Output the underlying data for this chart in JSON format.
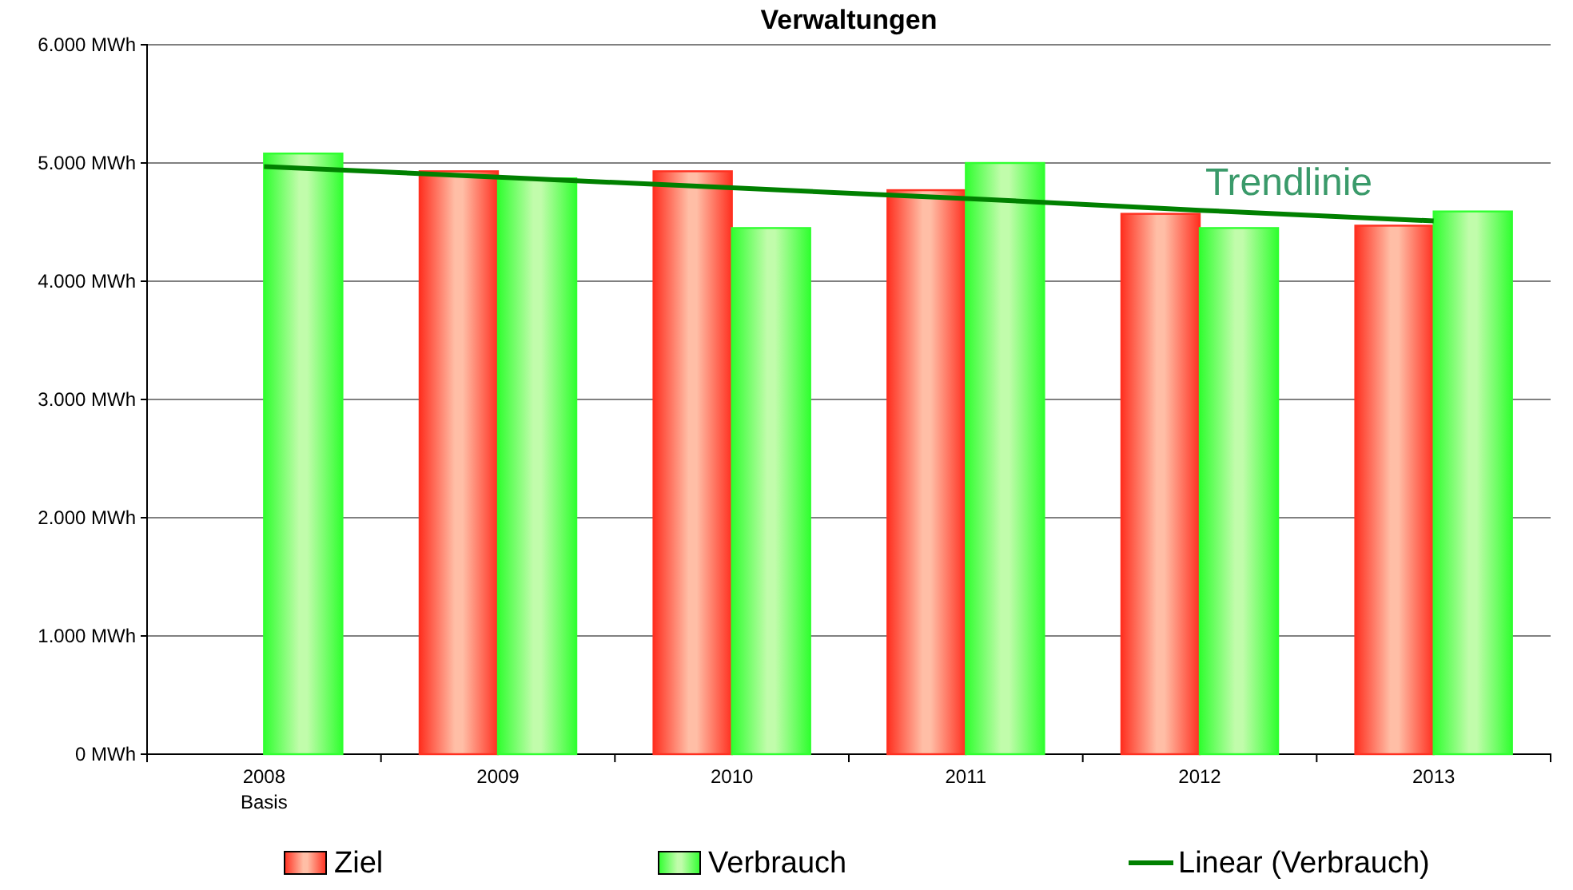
{
  "chart_data": {
    "type": "bar",
    "title": "Verwaltungen",
    "categories": [
      "2008\nBasis",
      "2009",
      "2010",
      "2011",
      "2012",
      "2013"
    ],
    "series": [
      {
        "name": "Ziel",
        "color": "#ff3020",
        "values": [
          null,
          4930,
          4930,
          4770,
          4570,
          4470
        ]
      },
      {
        "name": "Verbrauch",
        "color": "#30ff30",
        "values": [
          5080,
          4870,
          4450,
          5000,
          4450,
          4590
        ]
      },
      {
        "name": "Linear (Verbrauch)",
        "type": "line",
        "color": "#008000",
        "values": [
          4970,
          4880,
          4790,
          4700,
          4600,
          4510
        ]
      }
    ],
    "ylim": [
      0,
      6000
    ],
    "yticks": [
      {
        "value": 0,
        "label": "0 MWh"
      },
      {
        "value": 1000,
        "label": "1.000 MWh"
      },
      {
        "value": 2000,
        "label": "2.000 MWh"
      },
      {
        "value": 3000,
        "label": "3.000 MWh"
      },
      {
        "value": 4000,
        "label": "4.000 MWh"
      },
      {
        "value": 5000,
        "label": "5.000 MWh"
      },
      {
        "value": 6000,
        "label": "6.000 MWh"
      }
    ],
    "grid": "y",
    "legend": "bottom",
    "annotations": [
      "Trendlinie"
    ]
  }
}
